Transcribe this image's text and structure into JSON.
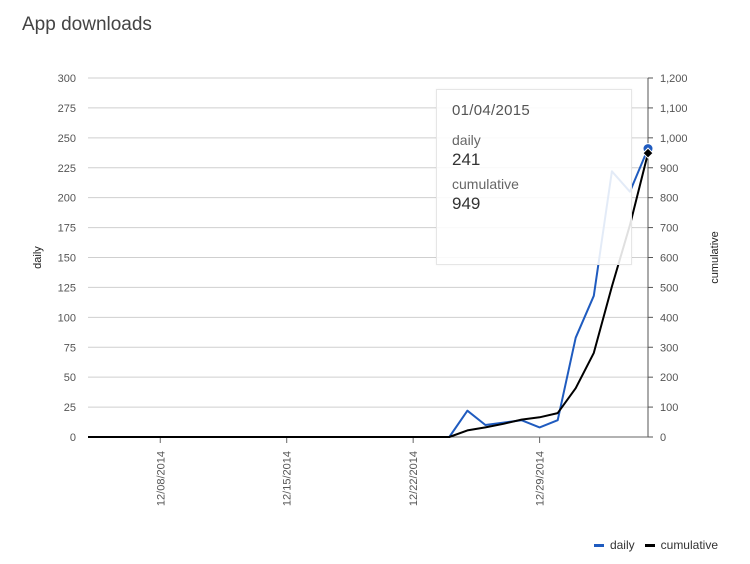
{
  "title": "App downloads",
  "chart_data": {
    "type": "line",
    "x": [
      "12/04/2014",
      "12/05/2014",
      "12/06/2014",
      "12/07/2014",
      "12/08/2014",
      "12/09/2014",
      "12/10/2014",
      "12/11/2014",
      "12/12/2014",
      "12/13/2014",
      "12/14/2014",
      "12/15/2014",
      "12/16/2014",
      "12/17/2014",
      "12/18/2014",
      "12/19/2014",
      "12/20/2014",
      "12/21/2014",
      "12/22/2014",
      "12/23/2014",
      "12/24/2014",
      "12/25/2014",
      "12/26/2014",
      "12/27/2014",
      "12/28/2014",
      "12/29/2014",
      "12/30/2014",
      "12/31/2014",
      "01/01/2015",
      "01/02/2015",
      "01/03/2015",
      "01/04/2015"
    ],
    "x_ticks": [
      "12/08/2014",
      "12/15/2014",
      "12/22/2014",
      "12/29/2014"
    ],
    "series": [
      {
        "name": "daily",
        "axis": "left",
        "color": "#1f5bbf",
        "values": [
          0,
          0,
          0,
          0,
          0,
          0,
          0,
          0,
          0,
          0,
          0,
          0,
          0,
          0,
          0,
          0,
          0,
          0,
          0,
          0,
          0,
          22,
          10,
          12,
          14,
          8,
          14,
          83,
          118,
          222,
          205,
          241
        ]
      },
      {
        "name": "cumulative",
        "axis": "right",
        "color": "#000000",
        "values": [
          0,
          0,
          0,
          0,
          0,
          0,
          0,
          0,
          0,
          0,
          0,
          0,
          0,
          0,
          0,
          0,
          0,
          0,
          0,
          0,
          0,
          22,
          32,
          44,
          58,
          66,
          80,
          163,
          281,
          503,
          708,
          949
        ]
      }
    ],
    "ylabel": "daily",
    "ylim": [
      0,
      300
    ],
    "yticks": [
      0,
      25,
      50,
      75,
      100,
      125,
      150,
      175,
      200,
      225,
      250,
      275,
      300
    ],
    "y2label": "cumulative",
    "y2lim": [
      0,
      1200
    ],
    "y2ticks": [
      "0",
      "100",
      "200",
      "300",
      "400",
      "500",
      "600",
      "700",
      "800",
      "900",
      "1,000",
      "1,100",
      "1,200"
    ],
    "grid": true,
    "legend": "bottom-right"
  },
  "tooltip": {
    "date": "01/04/2015",
    "daily_label": "daily",
    "daily_value": "241",
    "cumulative_label": "cumulative",
    "cumulative_value": "949"
  }
}
